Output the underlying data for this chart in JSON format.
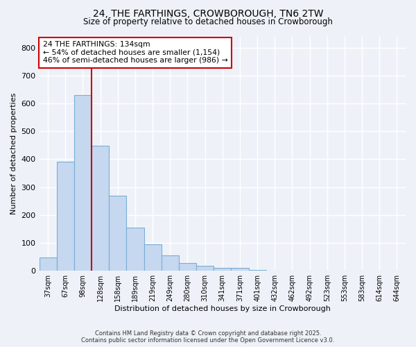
{
  "title1": "24, THE FARTHINGS, CROWBOROUGH, TN6 2TW",
  "title2": "Size of property relative to detached houses in Crowborough",
  "xlabel": "Distribution of detached houses by size in Crowborough",
  "ylabel": "Number of detached properties",
  "categories": [
    "37sqm",
    "67sqm",
    "98sqm",
    "128sqm",
    "158sqm",
    "189sqm",
    "219sqm",
    "249sqm",
    "280sqm",
    "310sqm",
    "341sqm",
    "371sqm",
    "401sqm",
    "432sqm",
    "462sqm",
    "492sqm",
    "523sqm",
    "553sqm",
    "583sqm",
    "614sqm",
    "644sqm"
  ],
  "bar_heights": [
    47,
    390,
    630,
    447,
    270,
    155,
    95,
    55,
    27,
    17,
    10,
    10,
    3,
    0,
    0,
    0,
    0,
    0,
    0,
    0,
    0
  ],
  "bar_color": "#c5d8f0",
  "bar_edge_color": "#7aadd4",
  "vline_x": 3,
  "annotation_text_line1": "24 THE FARTHINGS: 134sqm",
  "annotation_text_line2": "← 54% of detached houses are smaller (1,154)",
  "annotation_text_line3": "46% of semi-detached houses are larger (986) →",
  "annotation_box_color": "white",
  "annotation_box_edge": "#cc0000",
  "vline_color": "#cc0000",
  "footer_line1": "Contains HM Land Registry data © Crown copyright and database right 2025.",
  "footer_line2": "Contains public sector information licensed under the Open Government Licence v3.0.",
  "bg_color": "#eef2f8",
  "plot_bg_color": "#eef2f8",
  "ylim": [
    0,
    840
  ],
  "yticks": [
    0,
    100,
    200,
    300,
    400,
    500,
    600,
    700,
    800
  ],
  "grid_color": "#ffffff"
}
